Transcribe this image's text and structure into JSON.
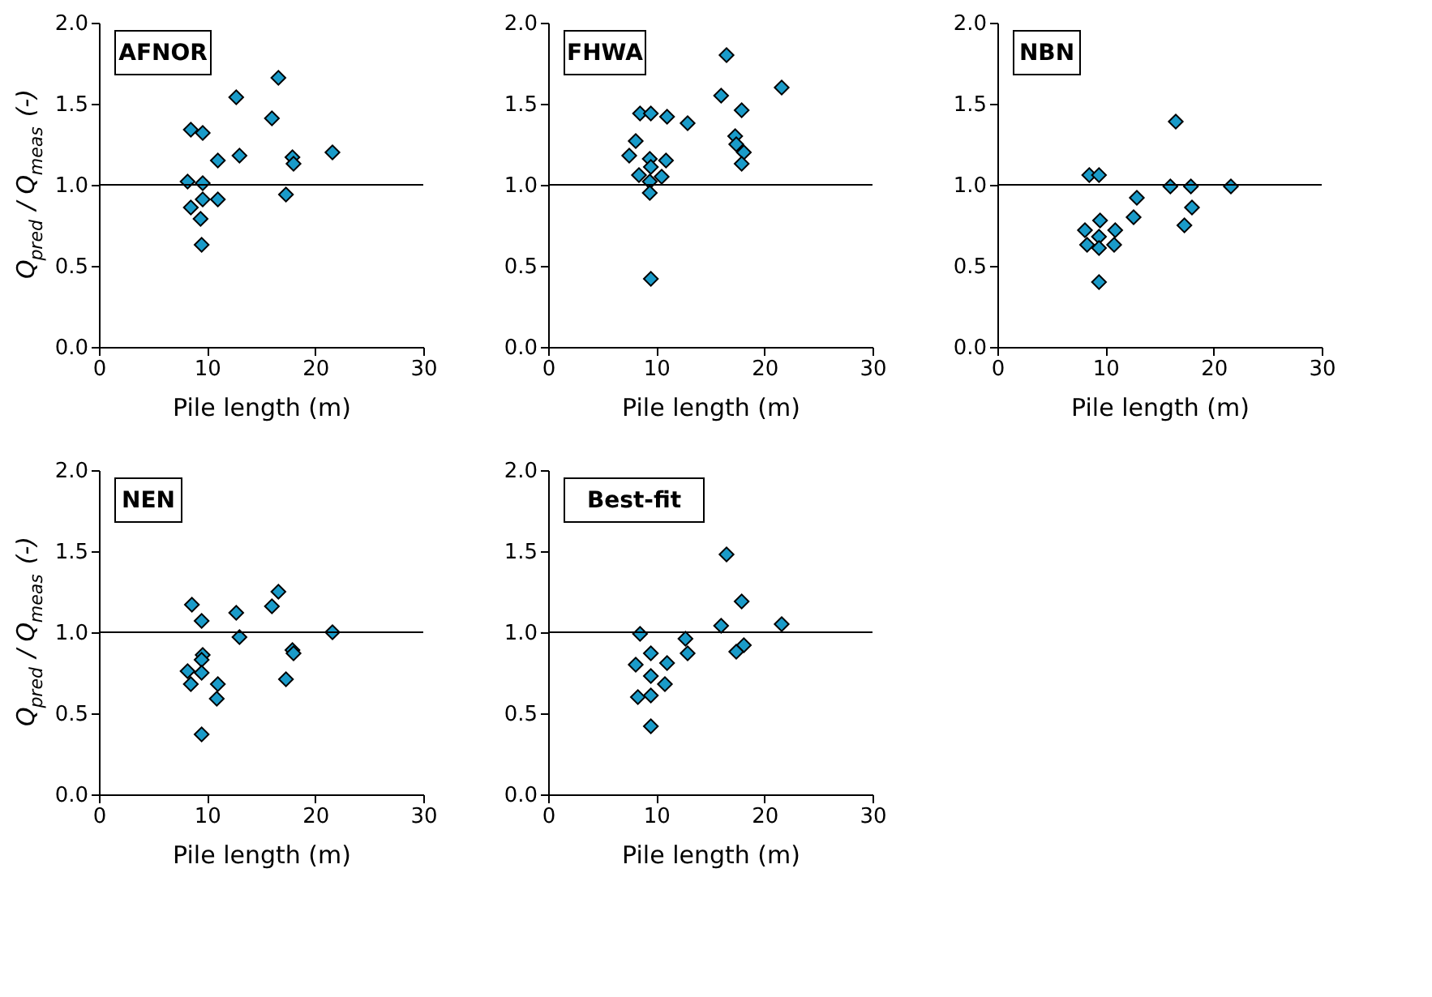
{
  "chart_data": [
    {
      "type": "scatter",
      "title": "AFNOR",
      "xlabel": "Pile length (m)",
      "ylabel": "Q$_{pred}$ / Q$_{meas}$  (-)",
      "color": "#1a9bc9",
      "marker": "diamond",
      "grid": false,
      "xlim": [
        0,
        30
      ],
      "xticks": [
        0,
        10,
        20,
        30
      ],
      "ylim": [
        0,
        2
      ],
      "yticks": [
        {
          "value": 0,
          "label": "0.0"
        },
        {
          "value": 0.5,
          "label": "0.5"
        },
        {
          "value": 1,
          "label": "1.0"
        },
        {
          "value": 1.5,
          "label": "1.5"
        },
        {
          "value": 2,
          "label": "2.0"
        }
      ],
      "ref_lines": [
        {
          "axis": "y",
          "value": 1
        }
      ],
      "x": [
        16.6,
        12.7,
        16.0,
        8.5,
        9.6,
        11.0,
        13.0,
        17.9,
        18.0,
        21.6,
        8.2,
        9.6,
        9.6,
        11.0,
        8.5,
        9.4,
        9.5,
        17.3
      ],
      "values": [
        1.66,
        1.54,
        1.41,
        1.34,
        1.32,
        1.15,
        1.18,
        1.17,
        1.13,
        1.2,
        1.02,
        1.01,
        0.91,
        0.91,
        0.86,
        0.79,
        0.63,
        0.94
      ]
    },
    {
      "type": "scatter",
      "title": "FHWA",
      "xlabel": "Pile length (m)",
      "color": "#1a9bc9",
      "marker": "diamond",
      "grid": false,
      "xlim": [
        0,
        30
      ],
      "xticks": [
        0,
        10,
        20,
        30
      ],
      "ylim": [
        0,
        2
      ],
      "yticks": [
        {
          "value": 0,
          "label": "0.0"
        },
        {
          "value": 0.5,
          "label": "0.5"
        },
        {
          "value": 1,
          "label": "1.0"
        },
        {
          "value": 1.5,
          "label": "1.5"
        },
        {
          "value": 2,
          "label": "2.0"
        }
      ],
      "ref_lines": [
        {
          "axis": "y",
          "value": 1
        }
      ],
      "x": [
        16.5,
        21.6,
        16.0,
        17.9,
        8.5,
        9.5,
        11.0,
        12.9,
        8.1,
        7.5,
        17.3,
        17.4,
        18.1,
        17.9,
        9.4,
        10.9,
        9.5,
        8.4,
        10.5,
        9.4,
        9.4,
        9.5
      ],
      "values": [
        1.8,
        1.6,
        1.55,
        1.46,
        1.44,
        1.44,
        1.42,
        1.38,
        1.27,
        1.18,
        1.3,
        1.25,
        1.2,
        1.13,
        1.16,
        1.15,
        1.11,
        1.06,
        1.05,
        1.02,
        0.95,
        0.42
      ]
    },
    {
      "type": "scatter",
      "title": "NBN",
      "xlabel": "Pile length (m)",
      "color": "#1a9bc9",
      "marker": "diamond",
      "grid": false,
      "xlim": [
        0,
        30
      ],
      "xticks": [
        0,
        10,
        20,
        30
      ],
      "ylim": [
        0,
        2
      ],
      "yticks": [
        {
          "value": 0,
          "label": "0.0"
        },
        {
          "value": 0.5,
          "label": "0.5"
        },
        {
          "value": 1,
          "label": "1.0"
        },
        {
          "value": 1.5,
          "label": "1.5"
        },
        {
          "value": 2,
          "label": "2.0"
        }
      ],
      "ref_lines": [
        {
          "axis": "y",
          "value": 1
        }
      ],
      "x": [
        16.5,
        8.5,
        9.4,
        16.0,
        17.9,
        21.6,
        12.9,
        12.6,
        18.0,
        17.3,
        9.5,
        8.1,
        9.4,
        10.9,
        8.3,
        9.4,
        10.8,
        9.4
      ],
      "values": [
        1.39,
        1.06,
        1.06,
        0.99,
        0.99,
        0.99,
        0.92,
        0.8,
        0.86,
        0.75,
        0.78,
        0.72,
        0.68,
        0.72,
        0.63,
        0.61,
        0.63,
        0.4
      ]
    },
    {
      "type": "scatter",
      "title": "NEN",
      "xlabel": "Pile length (m)",
      "ylabel": "Q$_{pred}$ / Q$_{meas}$  (-)",
      "color": "#1a9bc9",
      "marker": "diamond",
      "grid": false,
      "xlim": [
        0,
        30
      ],
      "xticks": [
        0,
        10,
        20,
        30
      ],
      "ylim": [
        0,
        2
      ],
      "yticks": [
        {
          "value": 0,
          "label": "0.0"
        },
        {
          "value": 0.5,
          "label": "0.5"
        },
        {
          "value": 1,
          "label": "1.0"
        },
        {
          "value": 1.5,
          "label": "1.5"
        },
        {
          "value": 2,
          "label": "2.0"
        }
      ],
      "ref_lines": [
        {
          "axis": "y",
          "value": 1
        }
      ],
      "x": [
        16.6,
        16.0,
        8.6,
        12.7,
        9.5,
        13.0,
        21.6,
        17.9,
        18.0,
        9.6,
        9.5,
        8.2,
        9.5,
        11.0,
        8.5,
        10.9,
        17.3,
        9.5
      ],
      "values": [
        1.25,
        1.16,
        1.17,
        1.12,
        1.07,
        0.97,
        1.0,
        0.89,
        0.87,
        0.86,
        0.83,
        0.76,
        0.75,
        0.68,
        0.68,
        0.59,
        0.71,
        0.37
      ]
    },
    {
      "type": "scatter",
      "title": "Best-fit",
      "xlabel": "Pile length (m)",
      "color": "#1a9bc9",
      "marker": "diamond",
      "grid": false,
      "xlim": [
        0,
        30
      ],
      "xticks": [
        0,
        10,
        20,
        30
      ],
      "ylim": [
        0,
        2
      ],
      "yticks": [
        {
          "value": 0,
          "label": "0.0"
        },
        {
          "value": 0.5,
          "label": "0.5"
        },
        {
          "value": 1,
          "label": "1.0"
        },
        {
          "value": 1.5,
          "label": "1.5"
        },
        {
          "value": 2,
          "label": "2.0"
        }
      ],
      "ref_lines": [
        {
          "axis": "y",
          "value": 1
        }
      ],
      "x": [
        16.5,
        17.9,
        16.0,
        21.6,
        8.5,
        12.7,
        12.9,
        9.5,
        18.1,
        17.4,
        8.1,
        11.0,
        9.5,
        10.8,
        8.3,
        9.5,
        9.5
      ],
      "values": [
        1.48,
        1.19,
        1.04,
        1.05,
        0.99,
        0.96,
        0.87,
        0.87,
        0.92,
        0.88,
        0.8,
        0.81,
        0.73,
        0.68,
        0.6,
        0.61,
        0.42
      ]
    }
  ]
}
